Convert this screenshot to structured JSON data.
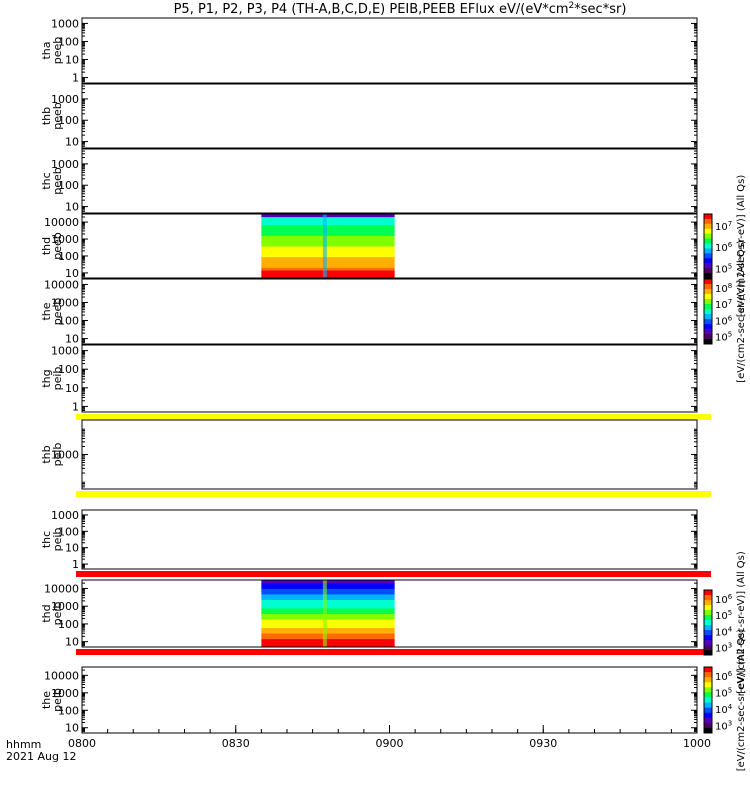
{
  "title_parts": [
    "P5, P1, P2, P3, P4 (TH-A,B,C,D,E) PEIB,PEEB EFlux eV/(eV*cm",
    "2",
    "*sec*sr)"
  ],
  "footer": {
    "time_label": "hhmm",
    "date_label": "2021 Aug 12"
  },
  "chart_data": {
    "type": "heatmap",
    "x_axis": {
      "range": [
        "0800",
        "1000"
      ],
      "range_minutes": [
        0,
        120
      ],
      "tick_labels": [
        "0800",
        "0830",
        "0900",
        "0930",
        "1000"
      ],
      "tick_minutes": [
        0,
        30,
        60,
        90,
        120
      ],
      "minor_tick_step_minutes": 5
    },
    "y_scale": "log",
    "panels": [
      {
        "probe": "tha",
        "product": "peeb",
        "ylim": [
          0.5,
          2000
        ],
        "ticks": [
          "1",
          "10",
          "100",
          "1000"
        ],
        "tick_values": [
          1,
          10,
          100,
          1000
        ],
        "has_data": false
      },
      {
        "probe": "thb",
        "product": "peeb",
        "ylim": [
          5,
          5000
        ],
        "ticks": [
          "10",
          "100",
          "1000"
        ],
        "tick_values": [
          10,
          100,
          1000
        ],
        "has_data": false
      },
      {
        "probe": "thc",
        "product": "peeb",
        "ylim": [
          5,
          5000
        ],
        "ticks": [
          "10",
          "100",
          "1000"
        ],
        "tick_values": [
          10,
          100,
          1000
        ],
        "has_data": false
      },
      {
        "probe": "thd",
        "product": "peeb",
        "ylim": [
          5,
          30000
        ],
        "ticks": [
          "10",
          "100",
          "1000",
          "10000"
        ],
        "tick_values": [
          10,
          100,
          1000,
          10000
        ],
        "has_data": true,
        "data_time_range": [
          "0835",
          "0901"
        ],
        "colorbar": "peeb"
      },
      {
        "probe": "the",
        "product": "peeb",
        "ylim": [
          5,
          20000
        ],
        "ticks": [
          "10",
          "100",
          "1000",
          "10000"
        ],
        "tick_values": [
          10,
          100,
          1000,
          10000
        ],
        "has_data": false
      },
      {
        "probe": "thg",
        "product": "peib",
        "ylim": [
          0.5,
          2000
        ],
        "ticks": [
          "1",
          "10",
          "100",
          "1000"
        ],
        "tick_values": [
          1,
          10,
          100,
          1000
        ],
        "has_data": false,
        "bottom_band": "#ffff00"
      },
      {
        "probe": "thb",
        "product": "peib",
        "ylim": [
          50,
          20000
        ],
        "ticks": [
          "1000"
        ],
        "tick_values": [
          1000
        ],
        "has_data": false,
        "bottom_band": "#ffff00"
      },
      {
        "probe": "thc",
        "product": "peib",
        "ylim": [
          0.5,
          2000
        ],
        "ticks": [
          "1",
          "10",
          "100",
          "1000"
        ],
        "tick_values": [
          1,
          10,
          100,
          1000
        ],
        "has_data": false,
        "bottom_band": "#ff0000"
      },
      {
        "probe": "thd",
        "product": "peib",
        "ylim": [
          5,
          30000
        ],
        "ticks": [
          "10",
          "100",
          "1000",
          "10000"
        ],
        "tick_values": [
          10,
          100,
          1000,
          10000
        ],
        "has_data": true,
        "data_time_range": [
          "0835",
          "0901"
        ],
        "colorbar": "peib",
        "bottom_band": "#ff0000"
      },
      {
        "probe": "the",
        "product": "peib",
        "ylim": [
          5,
          30000
        ],
        "ticks": [
          "10",
          "100",
          "1000",
          "10000"
        ],
        "tick_values": [
          10,
          100,
          1000,
          10000
        ],
        "has_data": false,
        "colorbar": "peib2"
      }
    ],
    "colorbars": {
      "peeb": {
        "ticks": [
          "10",
          "10",
          "10"
        ],
        "exponents": [
          "7",
          "6",
          "5"
        ],
        "title": "[eV/(cm2-sec-sr-eV)] (All Qs)"
      },
      "peeb_overlap": {
        "ticks": [
          "10",
          "10",
          "10",
          "10"
        ],
        "exponents": [
          "8",
          "7",
          "6",
          "5"
        ],
        "title": "[eV/(cm2-sec-sr-eV)] (All Qs)"
      },
      "peib": {
        "ticks": [
          "10",
          "10",
          "10",
          "10"
        ],
        "exponents": [
          "6",
          "5",
          "4",
          "3"
        ],
        "title": "[eV/(cm2-sec-sr-eV)] (All Qs)"
      },
      "peib2": {
        "ticks": [
          "10",
          "10",
          "10",
          "10"
        ],
        "exponents": [
          "6",
          "5",
          "4",
          "3"
        ],
        "title": "[eV/(cm2-sec-sr-eV)] (All Qs)"
      }
    },
    "colorbar_colors": [
      "#ff0000",
      "#ff6a00",
      "#ffb000",
      "#ffff00",
      "#7fff00",
      "#00ff50",
      "#00ffd0",
      "#00b4ff",
      "#0050ff",
      "#0000ff",
      "#5000c0",
      "#4b0060",
      "#000000"
    ]
  }
}
